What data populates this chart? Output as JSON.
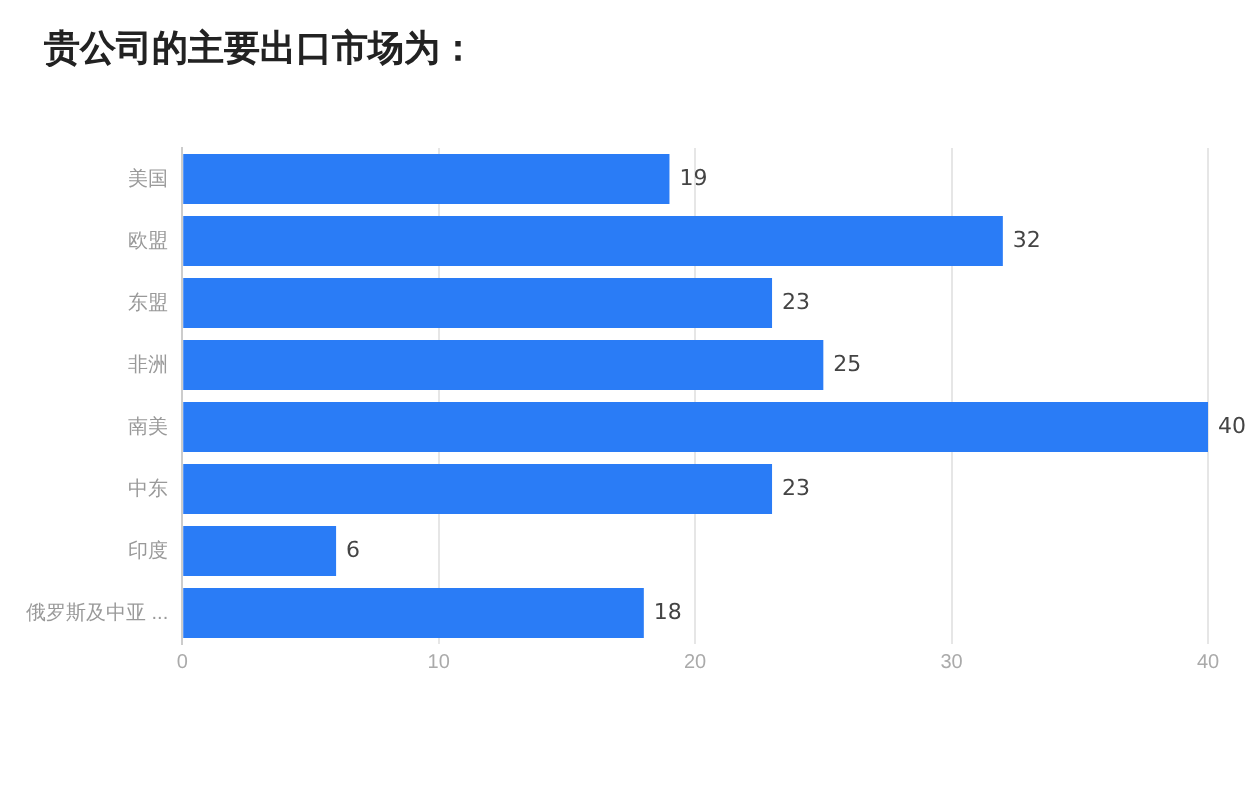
{
  "chart_data": {
    "type": "bar",
    "orientation": "horizontal",
    "title": "贵公司的主要出口市场为：",
    "categories": [
      "美国",
      "欧盟",
      "东盟",
      "非洲",
      "南美",
      "中东",
      "印度",
      "俄罗斯及中亚 ..."
    ],
    "values": [
      19,
      32,
      23,
      25,
      40,
      23,
      6,
      18
    ],
    "color": "#2a7cf6",
    "xlim": [
      0,
      40
    ],
    "xticks": [
      0,
      10,
      20,
      30,
      40
    ],
    "grid": "x",
    "data_labels": true
  }
}
